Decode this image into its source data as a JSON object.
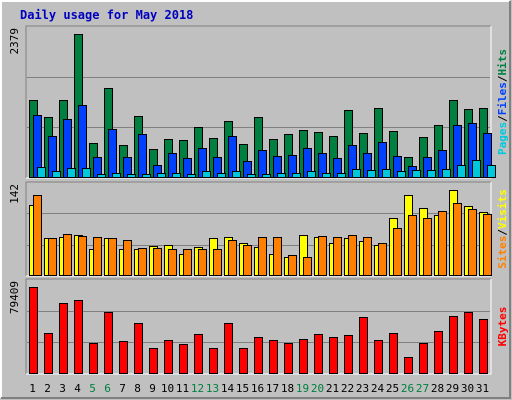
{
  "chart_data": {
    "type": "bar",
    "title": "Daily usage for May 2018",
    "categories": [
      "1",
      "2",
      "3",
      "4",
      "5",
      "6",
      "7",
      "8",
      "9",
      "10",
      "11",
      "12",
      "13",
      "14",
      "15",
      "16",
      "17",
      "18",
      "19",
      "20",
      "21",
      "22",
      "23",
      "24",
      "25",
      "26",
      "27",
      "28",
      "29",
      "30",
      "31"
    ],
    "weekend_days": [
      "5",
      "6",
      "12",
      "13",
      "19",
      "20",
      "26",
      "27"
    ],
    "panels": [
      {
        "id": "hits_files_pages",
        "ymax_label": "2379",
        "ylim": [
          0,
          2379
        ],
        "grid": true,
        "legend": [
          {
            "text": "Pages",
            "color": "#00c8dc"
          },
          {
            "text": "/",
            "color": "#000000"
          },
          {
            "text": "Files",
            "color": "#0040ff"
          },
          {
            "text": "/",
            "color": "#000000"
          },
          {
            "text": "Hits",
            "color": "#008040"
          }
        ],
        "series": [
          {
            "name": "Hits",
            "color": "#008040",
            "values": [
              1290,
              1010,
              1295,
              2379,
              570,
              1490,
              550,
              1030,
              475,
              650,
              620,
              840,
              660,
              940,
              560,
              1010,
              640,
              720,
              790,
              760,
              690,
              1130,
              740,
              1150,
              780,
              340,
              680,
              880,
              1290,
              1140,
              1150
            ]
          },
          {
            "name": "Files",
            "color": "#0040ff",
            "values": [
              1040,
              690,
              970,
              1210,
              340,
              810,
              350,
              720,
              210,
              410,
              325,
              490,
              345,
              690,
              285,
              460,
              365,
              380,
              495,
              420,
              335,
              540,
              405,
              600,
              370,
              200,
              350,
              470,
              870,
              910,
              740
            ]
          },
          {
            "name": "Pages",
            "color": "#00c8dc",
            "values": [
              180,
              120,
              160,
              160,
              70,
              80,
              60,
              70,
              90,
              90,
              70,
              110,
              90,
              110,
              70,
              70,
              90,
              80,
              110,
              90,
              80,
              150,
              130,
              150,
              110,
              130,
              140,
              150,
              210,
              290,
              210
            ]
          }
        ]
      },
      {
        "id": "visits_sites",
        "ymax_label": "142",
        "ylim": [
          0,
          142
        ],
        "grid": true,
        "legend": [
          {
            "text": "Sites",
            "color": "#ff8000"
          },
          {
            "text": "/",
            "color": "#000000"
          },
          {
            "text": "Visits",
            "color": "#ffff00"
          }
        ],
        "series": [
          {
            "name": "Visits",
            "color": "#ffff00",
            "values": [
              118,
              63,
              65,
              67,
              45,
              63,
              45,
              45,
              50,
              51,
              37,
              48,
              63,
              65,
              55,
              48,
              36,
              32,
              67,
              65,
              55,
              62,
              57,
              52,
              95,
              133,
              113,
              100,
              142,
              115,
              105
            ]
          },
          {
            "name": "Sites",
            "color": "#ff8000",
            "values": [
              134,
              63,
              69,
              66,
              64,
              62,
              60,
              46,
              47,
              45,
              45,
              45,
              45,
              60,
              52,
              65,
              65,
              35,
              32,
              66,
              65,
              68,
              65,
              54,
              80,
              100,
              95,
              108,
              120,
              110,
              102
            ]
          }
        ]
      },
      {
        "id": "kbytes",
        "ymax_label": "79409",
        "ylim": [
          0,
          79409
        ],
        "grid": true,
        "legend": [
          {
            "text": "KBytes",
            "color": "#ff0000"
          }
        ],
        "series": [
          {
            "name": "KBytes",
            "color": "#ff0000",
            "values": [
              79409,
              37500,
              65200,
              67500,
              28000,
              57000,
              30500,
              46500,
              23400,
              31300,
              27600,
              36800,
              23700,
              46200,
              23700,
              33600,
              30800,
              28000,
              32100,
              36100,
              33900,
              35500,
              51800,
              30700,
              37100,
              15300,
              27900,
              39500,
              52900,
              56900,
              50200
            ]
          }
        ]
      }
    ]
  }
}
